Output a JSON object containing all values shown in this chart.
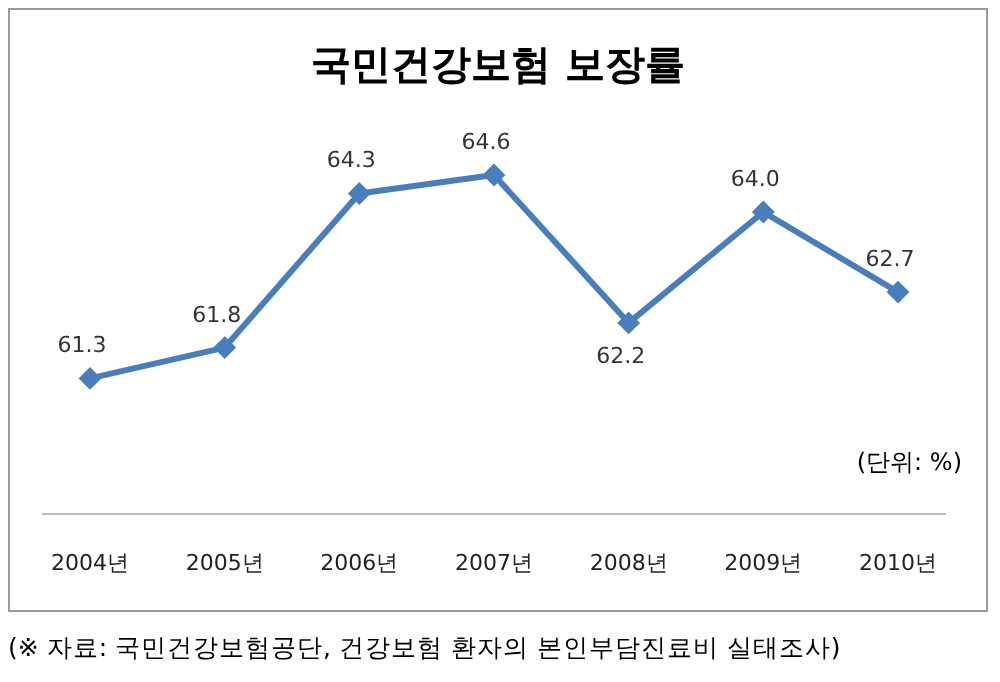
{
  "chart_data": {
    "type": "line",
    "title": "국민건강보험 보장률",
    "categories": [
      "2004년",
      "2005년",
      "2006년",
      "2007년",
      "2008년",
      "2009년",
      "2010년"
    ],
    "series": [
      {
        "color": "#4a7ebb",
        "values": [
          61.3,
          61.8,
          64.3,
          64.6,
          62.2,
          64.0,
          62.7
        ],
        "value_labels": [
          "61.3",
          "61.8",
          "64.3",
          "64.6",
          "62.2",
          "64.0",
          "62.7"
        ]
      }
    ],
    "marker": "diamond",
    "grid": false,
    "legend": false,
    "tick_labels": "x",
    "annotations": [
      "(단위: %)",
      "(※ 자료: 국민건강보험공단, 건강보험 환자의 본인부담진료비 실태조사)"
    ]
  }
}
